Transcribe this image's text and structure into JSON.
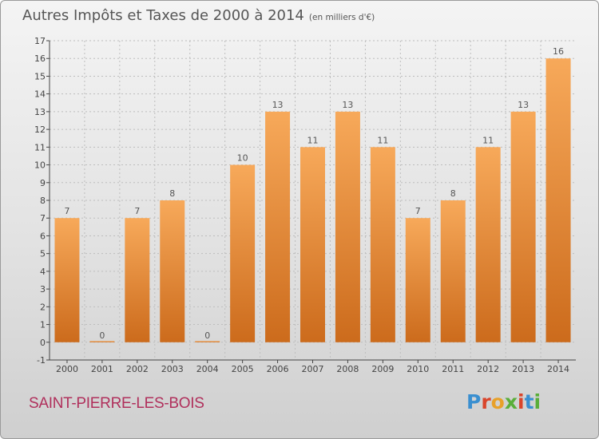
{
  "header": {
    "title": "Autres Impôts et Taxes de 2000 à 2014",
    "subtitle": "(en milliers d'€)"
  },
  "footer": {
    "commune": "SAINT-PIERRE-LES-BOIS",
    "brand": "Proxiti",
    "brand_colors": [
      "#3a8fd0",
      "#d9452b",
      "#e8a12a",
      "#5aae3a",
      "#d9452b",
      "#3a8fd0",
      "#5aae3a"
    ]
  },
  "colors": {
    "bar_top": "#f7a95a",
    "bar_bottom": "#cc6b1c",
    "axis": "#444444",
    "grid": "#bdbdbd"
  },
  "chart_data": {
    "type": "bar",
    "categories": [
      "2000",
      "2001",
      "2002",
      "2003",
      "2004",
      "2005",
      "2006",
      "2007",
      "2008",
      "2009",
      "2010",
      "2011",
      "2012",
      "2013",
      "2014"
    ],
    "values": [
      7,
      0,
      7,
      8,
      0,
      10,
      13,
      11,
      13,
      11,
      7,
      8,
      11,
      13,
      16
    ],
    "title": "Autres Impôts et Taxes de 2000 à 2014",
    "ylim": [
      -1,
      17
    ],
    "yticks": [
      -1,
      0,
      1,
      2,
      3,
      4,
      5,
      6,
      7,
      8,
      9,
      10,
      11,
      12,
      13,
      14,
      15,
      16,
      17
    ],
    "grid": true,
    "legend": "none"
  }
}
